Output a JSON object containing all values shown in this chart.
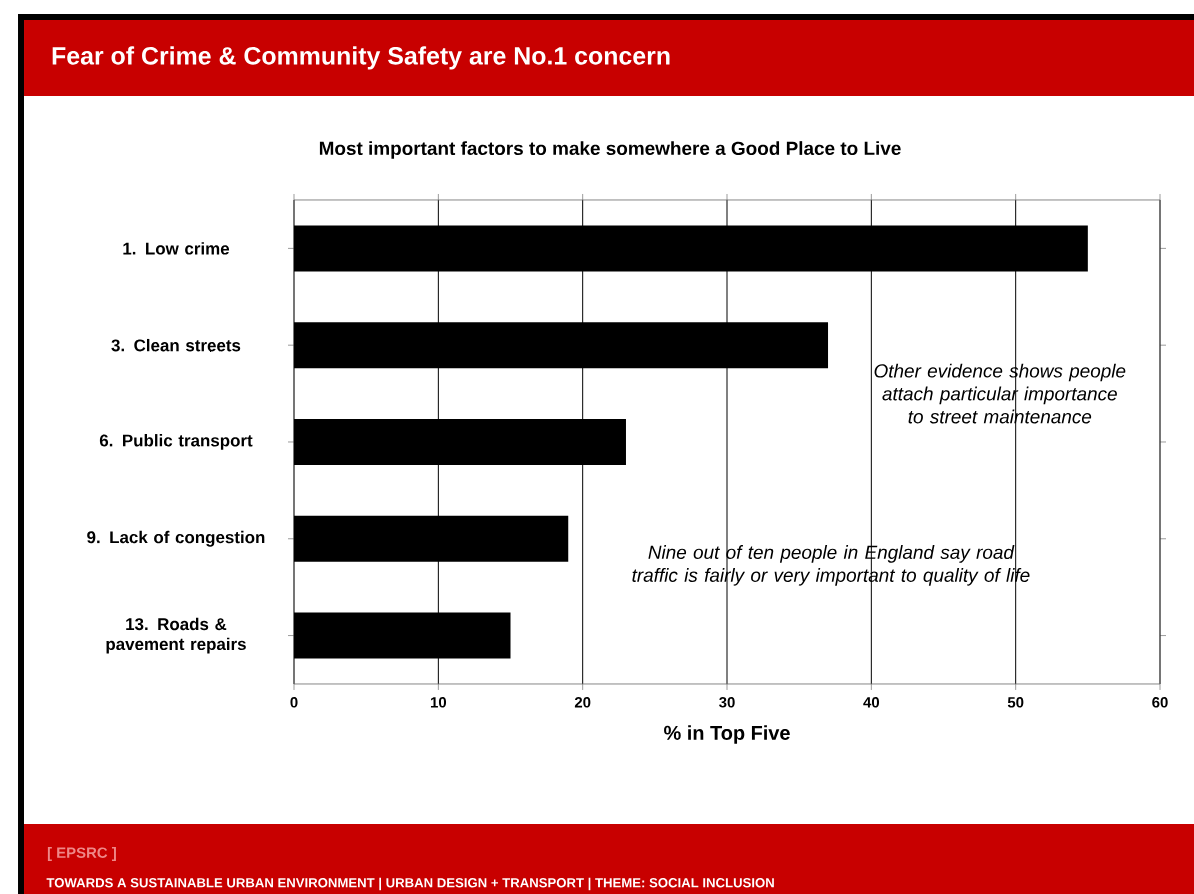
{
  "chart_data": {
    "type": "bar",
    "orientation": "horizontal",
    "title": "Fear of Crime & Community Safety are No.1 concern",
    "subtitle": "Most important factors to make somewhere a Good Place to Live",
    "xlabel": "% in Top Five",
    "categories": [
      "1. Low crime",
      "3. Clean streets",
      "6. Public transport",
      "9. Lack of congestion",
      "13. Roads & pavement repairs"
    ],
    "values": [
      55,
      37,
      23,
      19,
      15
    ],
    "color": "#000000",
    "xlim": [
      0,
      60
    ],
    "xticks": [
      0,
      10,
      20,
      30,
      40,
      50,
      60
    ],
    "grid": "x",
    "annotations": [
      "Other evidence shows people attach particular importance to street maintenance",
      "Nine out of ten people in England say road traffic is fairly or very important to quality of life",
      "[ EPSRC ]",
      "TOWARDS A SUSTAINABLE URBAN ENVIRONMENT | URBAN DESIGN + TRANSPORT | THEME: SOCIAL INCLUSION"
    ]
  }
}
